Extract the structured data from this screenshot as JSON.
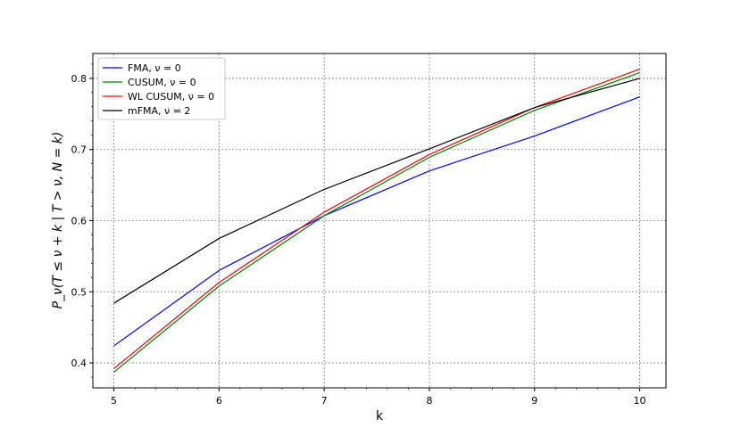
{
  "chart_data": {
    "type": "line",
    "title": "",
    "xlabel": "k",
    "ylabel": "P_ν(T ≤ ν + k | T > ν, N = k)",
    "xlim": [
      4.8,
      10.25
    ],
    "ylim": [
      0.365,
      0.835
    ],
    "xticks": [
      5,
      6,
      7,
      8,
      9,
      10
    ],
    "yticks": [
      0.4,
      0.5,
      0.6,
      0.7,
      0.8
    ],
    "xtick_labels": [
      "5",
      "6",
      "7",
      "8",
      "9",
      "10"
    ],
    "ytick_labels": [
      "0.4",
      "0.5",
      "0.6",
      "0.7",
      "0.8"
    ],
    "grid": true,
    "legend_position": "top-left",
    "x": [
      5,
      6,
      7,
      8,
      9,
      10
    ],
    "series": [
      {
        "name": "FMA, ν = 0",
        "color": "#0000ff",
        "values": [
          0.424,
          0.53,
          0.607,
          0.67,
          0.719,
          0.774
        ]
      },
      {
        "name": "CUSUM, ν = 0",
        "color": "#008000",
        "values": [
          0.387,
          0.508,
          0.607,
          0.689,
          0.755,
          0.808
        ]
      },
      {
        "name": "WL CUSUM, ν = 0",
        "color": "#ff0000",
        "values": [
          0.392,
          0.513,
          0.612,
          0.693,
          0.759,
          0.813
        ]
      },
      {
        "name": "mFMA, ν = 2",
        "color": "#000000",
        "values": [
          0.484,
          0.575,
          0.644,
          0.701,
          0.759,
          0.8
        ]
      }
    ]
  }
}
